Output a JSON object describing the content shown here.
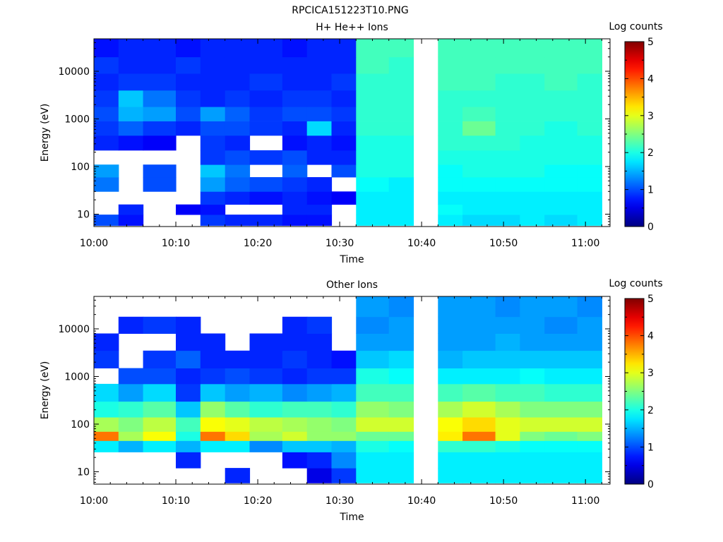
{
  "figure_title": "RPCICA151223T10.PNG",
  "chart_data": [
    {
      "type": "heatmap",
      "title": "H+ He++ Ions",
      "xlabel": "Time",
      "ylabel": "Energy (eV)",
      "x_ticks": [
        "10:00",
        "10:10",
        "10:20",
        "10:30",
        "10:40",
        "10:50",
        "11:00"
      ],
      "x_range": [
        "10:00",
        "11:03"
      ],
      "y_ticks": [
        "10",
        "100",
        "1000",
        "10000"
      ],
      "y_range_eV": [
        5.5,
        48000
      ],
      "y_scale": "log",
      "colorbar": {
        "label": "Log counts",
        "ticks": [
          "0",
          "1",
          "2",
          "3",
          "4",
          "5"
        ],
        "range": [
          0,
          5
        ]
      },
      "time_columns": [
        "10:00",
        "10:03",
        "10:06",
        "10:10",
        "10:13",
        "10:16",
        "10:19",
        "10:23",
        "10:26",
        "10:29",
        "10:32",
        "10:36",
        "10:39",
        "10:42",
        "10:45",
        "10:49",
        "10:52",
        "10:55",
        "10:59",
        "11:02"
      ],
      "data_gap": [
        "10:39",
        "10:42"
      ],
      "bands": [
        {
          "e_min": 5.8,
          "e_max": 9.8,
          "values": [
            1.0,
            0.7,
            null,
            null,
            0.9,
            0.8,
            0.8,
            0.7,
            0.7,
            null,
            1.8,
            1.8,
            null,
            1.8,
            1.7,
            1.7,
            1.8,
            1.7,
            1.8,
            null
          ]
        },
        {
          "e_min": 9.8,
          "e_max": 16,
          "values": [
            null,
            0.8,
            null,
            0.6,
            0.7,
            null,
            null,
            0.8,
            0.8,
            null,
            1.8,
            1.8,
            null,
            1.9,
            1.8,
            1.8,
            1.8,
            1.8,
            1.8,
            null
          ]
        },
        {
          "e_min": 16,
          "e_max": 30,
          "values": [
            null,
            null,
            null,
            null,
            0.9,
            0.8,
            0.7,
            0.8,
            0.7,
            0.6,
            1.8,
            1.8,
            null,
            1.8,
            1.8,
            1.8,
            1.8,
            1.8,
            1.8,
            null
          ]
        },
        {
          "e_min": 30,
          "e_max": 60,
          "values": [
            1.2,
            null,
            1.0,
            null,
            1.4,
            1.1,
            1.0,
            0.9,
            0.8,
            null,
            1.9,
            1.8,
            null,
            1.9,
            1.9,
            1.9,
            1.9,
            1.9,
            1.9,
            null
          ]
        },
        {
          "e_min": 60,
          "e_max": 110,
          "values": [
            1.4,
            null,
            1.0,
            null,
            1.6,
            1.2,
            null,
            1.1,
            null,
            1.0,
            2.0,
            2.0,
            null,
            1.9,
            2.0,
            2.0,
            2.0,
            1.9,
            1.9,
            null
          ]
        },
        {
          "e_min": 110,
          "e_max": 220,
          "values": [
            null,
            null,
            null,
            null,
            0.9,
            1.0,
            0.9,
            1.0,
            0.8,
            0.8,
            2.0,
            2.0,
            null,
            2.0,
            2.0,
            2.0,
            2.0,
            2.0,
            2.0,
            null
          ]
        },
        {
          "e_min": 220,
          "e_max": 450,
          "values": [
            0.8,
            0.7,
            0.6,
            null,
            0.9,
            0.8,
            null,
            0.7,
            0.8,
            0.7,
            2.0,
            2.0,
            null,
            2.1,
            2.1,
            2.1,
            2.0,
            2.0,
            2.0,
            null
          ]
        },
        {
          "e_min": 450,
          "e_max": 900,
          "values": [
            0.9,
            1.1,
            0.9,
            0.8,
            1.0,
            1.0,
            0.9,
            0.8,
            1.7,
            0.8,
            2.1,
            2.1,
            null,
            2.1,
            2.4,
            2.1,
            2.1,
            2.0,
            2.1,
            null
          ]
        },
        {
          "e_min": 900,
          "e_max": 1800,
          "values": [
            1.0,
            1.5,
            1.4,
            1.0,
            1.4,
            1.1,
            0.9,
            1.0,
            1.0,
            0.9,
            2.1,
            2.1,
            null,
            2.1,
            2.2,
            2.1,
            2.1,
            2.1,
            2.1,
            null
          ]
        },
        {
          "e_min": 1800,
          "e_max": 4000,
          "values": [
            0.9,
            1.6,
            1.2,
            0.9,
            0.8,
            0.9,
            0.8,
            0.9,
            0.9,
            0.8,
            2.1,
            2.1,
            null,
            2.1,
            2.1,
            2.1,
            2.1,
            2.1,
            2.1,
            null
          ]
        },
        {
          "e_min": 4000,
          "e_max": 9000,
          "values": [
            0.8,
            0.9,
            0.9,
            0.8,
            0.8,
            0.8,
            0.9,
            0.8,
            0.8,
            0.9,
            2.1,
            2.1,
            null,
            2.2,
            2.2,
            2.1,
            2.1,
            2.2,
            2.1,
            null
          ]
        },
        {
          "e_min": 9000,
          "e_max": 20000,
          "values": [
            0.9,
            0.8,
            0.8,
            0.9,
            0.8,
            0.8,
            0.8,
            0.8,
            0.8,
            0.8,
            2.2,
            2.1,
            null,
            2.2,
            2.2,
            2.2,
            2.2,
            2.2,
            2.2,
            null
          ]
        },
        {
          "e_min": 20000,
          "e_max": 48000,
          "values": [
            0.7,
            0.8,
            0.8,
            0.7,
            0.8,
            0.8,
            0.8,
            0.7,
            0.8,
            0.8,
            2.2,
            2.2,
            null,
            2.2,
            2.2,
            2.2,
            2.2,
            2.2,
            2.2,
            null
          ]
        }
      ]
    },
    {
      "type": "heatmap",
      "title": "Other Ions",
      "xlabel": "Time",
      "ylabel": "Energy (eV)",
      "x_ticks": [
        "10:00",
        "10:10",
        "10:20",
        "10:30",
        "10:40",
        "10:50",
        "11:00"
      ],
      "x_range": [
        "10:00",
        "11:03"
      ],
      "y_ticks": [
        "10",
        "100",
        "1000",
        "10000"
      ],
      "y_range_eV": [
        5.5,
        48000
      ],
      "y_scale": "log",
      "colorbar": {
        "label": "Log counts",
        "ticks": [
          "0",
          "1",
          "2",
          "3",
          "4",
          "5"
        ],
        "range": [
          0,
          5
        ]
      },
      "time_columns": [
        "10:00",
        "10:03",
        "10:06",
        "10:10",
        "10:13",
        "10:16",
        "10:19",
        "10:23",
        "10:26",
        "10:29",
        "10:32",
        "10:36",
        "10:39",
        "10:42",
        "10:45",
        "10:49",
        "10:52",
        "10:55",
        "10:59",
        "11:02"
      ],
      "data_gap": [
        "10:39",
        "10:42"
      ],
      "bands": [
        {
          "e_min": 5.8,
          "e_max": 12,
          "values": [
            null,
            null,
            null,
            null,
            null,
            0.8,
            null,
            null,
            0.5,
            0.9,
            1.8,
            1.8,
            null,
            1.8,
            1.8,
            1.8,
            1.8,
            1.8,
            1.8,
            null
          ]
        },
        {
          "e_min": 12,
          "e_max": 26,
          "values": [
            null,
            null,
            null,
            0.8,
            null,
            null,
            null,
            0.7,
            0.8,
            1.3,
            1.8,
            1.8,
            null,
            1.8,
            1.8,
            1.8,
            1.8,
            1.8,
            1.8,
            null
          ]
        },
        {
          "e_min": 26,
          "e_max": 45,
          "values": [
            1.8,
            1.5,
            1.8,
            1.5,
            1.8,
            1.8,
            1.3,
            1.6,
            1.6,
            1.5,
            2.0,
            1.9,
            null,
            2.1,
            2.1,
            2.0,
            1.9,
            1.9,
            1.9,
            null
          ]
        },
        {
          "e_min": 45,
          "e_max": 70,
          "values": [
            3.8,
            2.7,
            3.1,
            2.0,
            3.8,
            3.3,
            2.7,
            2.9,
            2.6,
            2.6,
            2.4,
            2.4,
            null,
            3.2,
            3.8,
            3.0,
            2.5,
            2.4,
            2.5,
            null
          ]
        },
        {
          "e_min": 70,
          "e_max": 140,
          "values": [
            2.7,
            2.5,
            2.8,
            2.2,
            3.1,
            3.0,
            2.8,
            2.7,
            2.6,
            2.5,
            2.9,
            2.9,
            null,
            3.1,
            3.3,
            3.0,
            2.9,
            2.9,
            2.9,
            null
          ]
        },
        {
          "e_min": 140,
          "e_max": 300,
          "values": [
            2.0,
            2.1,
            2.3,
            1.6,
            2.6,
            2.3,
            2.1,
            2.2,
            2.2,
            2.1,
            2.6,
            2.5,
            null,
            2.7,
            2.9,
            2.7,
            2.5,
            2.5,
            2.5,
            null
          ]
        },
        {
          "e_min": 300,
          "e_max": 700,
          "values": [
            1.7,
            1.4,
            1.7,
            0.9,
            1.6,
            1.4,
            1.5,
            1.3,
            1.4,
            1.5,
            2.2,
            2.2,
            null,
            2.2,
            2.3,
            2.2,
            2.2,
            2.1,
            2.1,
            null
          ]
        },
        {
          "e_min": 700,
          "e_max": 1500,
          "values": [
            null,
            1.0,
            1.0,
            0.8,
            0.9,
            1.0,
            0.9,
            0.8,
            0.9,
            0.9,
            2.0,
            1.9,
            null,
            1.8,
            1.8,
            1.8,
            1.9,
            1.8,
            1.8,
            null
          ]
        },
        {
          "e_min": 1500,
          "e_max": 3500,
          "values": [
            0.9,
            null,
            0.9,
            1.1,
            0.8,
            0.8,
            0.8,
            0.9,
            0.8,
            0.7,
            1.6,
            1.7,
            null,
            1.5,
            1.6,
            1.6,
            1.6,
            1.6,
            1.6,
            null
          ]
        },
        {
          "e_min": 3500,
          "e_max": 8000,
          "values": [
            0.8,
            null,
            null,
            0.8,
            0.8,
            null,
            0.8,
            0.8,
            0.8,
            null,
            1.4,
            1.4,
            null,
            1.4,
            1.4,
            1.5,
            1.4,
            1.4,
            1.4,
            null
          ]
        },
        {
          "e_min": 8000,
          "e_max": 18000,
          "values": [
            null,
            0.8,
            0.9,
            0.8,
            null,
            null,
            null,
            0.8,
            0.9,
            null,
            1.3,
            1.4,
            null,
            1.4,
            1.4,
            1.4,
            1.4,
            1.3,
            1.4,
            null
          ]
        },
        {
          "e_min": 18000,
          "e_max": 48000,
          "values": [
            null,
            null,
            null,
            null,
            null,
            null,
            null,
            null,
            null,
            null,
            1.4,
            1.3,
            null,
            1.4,
            1.4,
            1.3,
            1.4,
            1.4,
            1.3,
            null
          ]
        }
      ]
    }
  ]
}
